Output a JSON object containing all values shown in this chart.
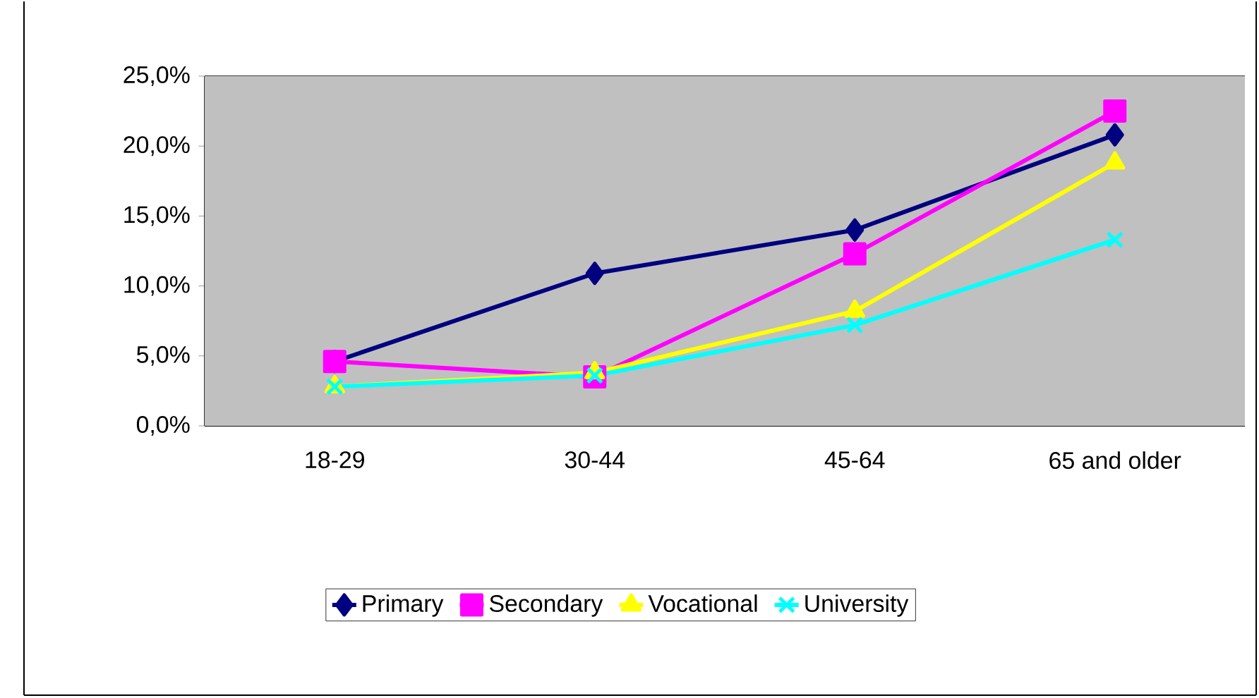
{
  "chart_data": {
    "type": "line",
    "categories": [
      "18-29",
      "30-44",
      "45-64",
      "65 and older"
    ],
    "series": [
      {
        "name": "Primary",
        "color": "#000080",
        "marker": "diamond",
        "values": [
          4.6,
          10.9,
          14.0,
          20.8
        ]
      },
      {
        "name": "Secondary",
        "color": "#ff00ff",
        "marker": "square",
        "values": [
          4.6,
          3.5,
          12.3,
          22.5
        ]
      },
      {
        "name": "Vocational",
        "color": "#ffff00",
        "marker": "triangle",
        "values": [
          2.8,
          3.8,
          8.2,
          18.8
        ]
      },
      {
        "name": "University",
        "color": "#00ffff",
        "marker": "cross",
        "values": [
          2.8,
          3.6,
          7.2,
          13.3
        ]
      }
    ],
    "ylim": [
      0,
      25
    ],
    "yticks": [
      {
        "value": 0,
        "label": "0,0%"
      },
      {
        "value": 5,
        "label": "5,0%"
      },
      {
        "value": 10,
        "label": "10,0%"
      },
      {
        "value": 15,
        "label": "15,0%"
      },
      {
        "value": 20,
        "label": "20,0%"
      },
      {
        "value": 25,
        "label": "25,0%"
      }
    ],
    "grid": "y",
    "legend": "bottom",
    "line_style": "solid"
  }
}
